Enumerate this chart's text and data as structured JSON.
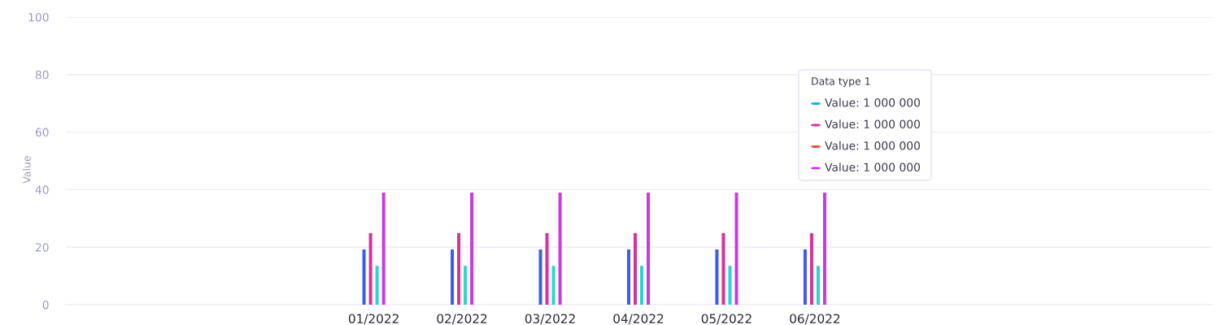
{
  "chart_data": {
    "type": "bar",
    "ylabel": "Value",
    "categories": [
      null,
      null,
      null,
      "01/2022",
      "02/2022",
      "03/2022",
      "04/2022",
      "05/2022",
      "06/2022",
      null,
      null,
      null,
      null
    ],
    "series": [
      {
        "color": "#3a5cf0",
        "values": [
          null,
          null,
          null,
          19.2,
          19.2,
          19.2,
          19.2,
          19.2,
          19.2,
          null,
          null,
          null,
          null
        ]
      },
      {
        "color": "#d9319a",
        "values": [
          null,
          null,
          null,
          24.9,
          24.9,
          24.9,
          24.9,
          24.9,
          24.9,
          null,
          null,
          null,
          null
        ]
      },
      {
        "color": "#2ed3d0",
        "values": [
          null,
          null,
          null,
          13.5,
          13.5,
          13.5,
          13.5,
          13.5,
          13.5,
          null,
          null,
          null,
          null
        ]
      },
      {
        "color": "#c93ae0",
        "values": [
          null,
          null,
          null,
          39,
          39,
          39,
          39,
          39,
          39,
          null,
          null,
          null,
          null
        ]
      }
    ],
    "ylim": [
      0,
      100
    ],
    "yticks": [
      0,
      20,
      40,
      60,
      80,
      100
    ],
    "grid": "y",
    "legend": false,
    "annotations": [
      "Data type 1",
      "Value: 1 000 000",
      "Value: 1 000 000",
      "Value: 1 000 000",
      "Value: 1 000 000"
    ]
  }
}
